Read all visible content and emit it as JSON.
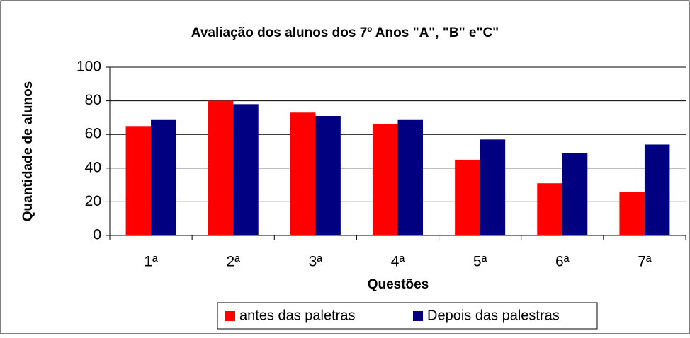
{
  "chart_data": {
    "type": "bar",
    "title": "Avaliação dos alunos dos 7º Anos \"A\", \"B\" e\"C\"",
    "x_label": "Questões",
    "y_label": "Quantidade de alunos",
    "categories": [
      "1ª",
      "2ª",
      "3ª",
      "4ª",
      "5ª",
      "6ª",
      "7ª"
    ],
    "series": [
      {
        "name": "antes das paletras",
        "color": "#ff0000",
        "values": [
          65,
          80,
          73,
          66,
          45,
          31,
          26
        ]
      },
      {
        "name": "Depois das palestras",
        "color": "#000080",
        "values": [
          69,
          78,
          71,
          69,
          57,
          49,
          54
        ]
      }
    ],
    "ylim": [
      0,
      100
    ],
    "yticks": [
      0,
      20,
      40,
      60,
      80,
      100
    ],
    "grid": true,
    "legend": "bottom"
  }
}
